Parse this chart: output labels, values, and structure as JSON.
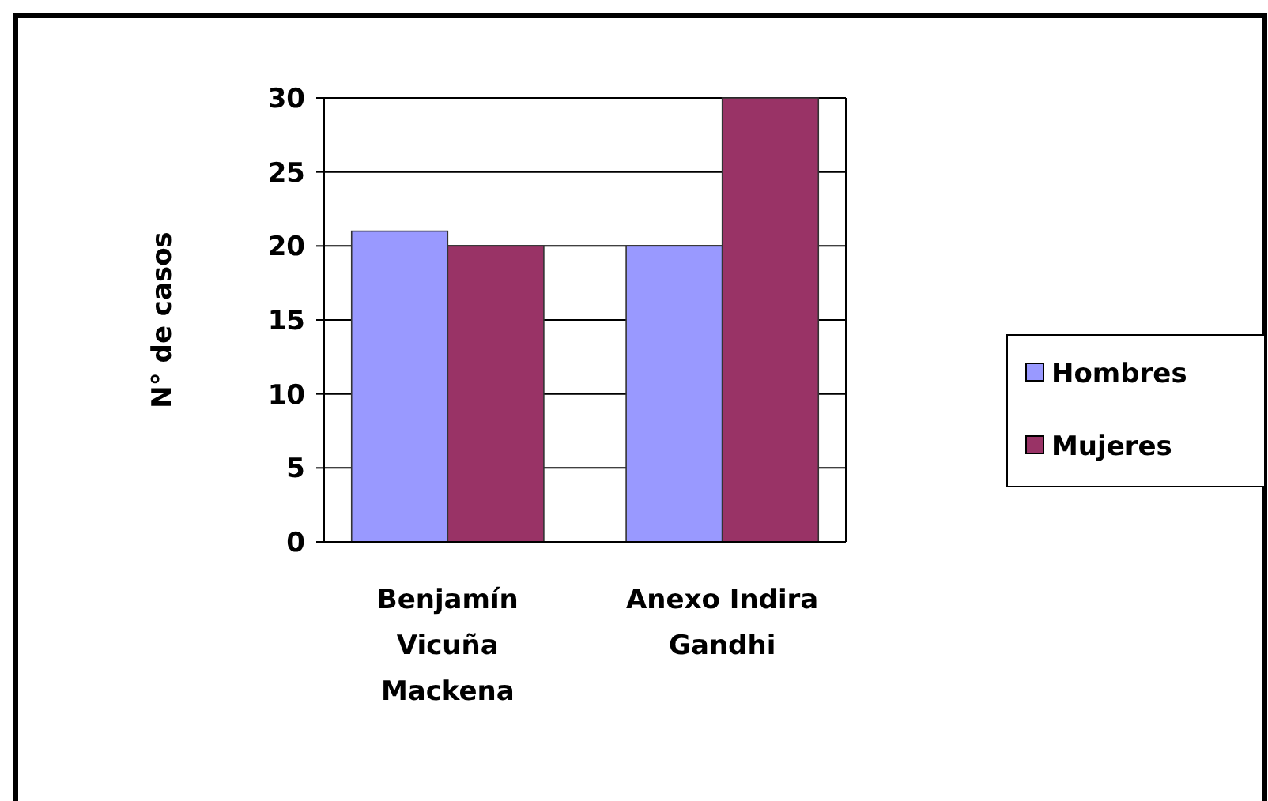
{
  "chart_data": {
    "type": "bar",
    "ylabel": "N° de casos",
    "categories": [
      "Benjamín Vicuña Mackena",
      "Anexo Indira Gandhi"
    ],
    "series": [
      {
        "name": "Hombres",
        "color": "#9999ff",
        "values": [
          21,
          20
        ]
      },
      {
        "name": "Mujeres",
        "color": "#993366",
        "values": [
          20,
          30
        ]
      }
    ],
    "ylim": [
      0,
      30
    ],
    "yticks": [
      0,
      5,
      10,
      15,
      20,
      25,
      30
    ],
    "grid": "y",
    "legend": "right"
  }
}
